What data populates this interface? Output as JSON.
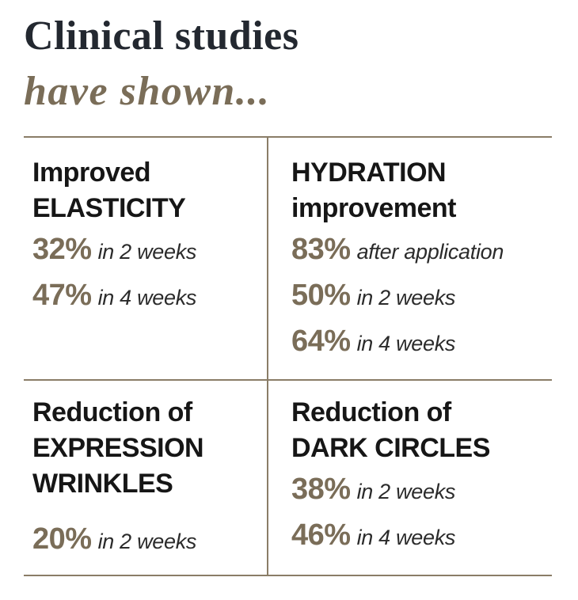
{
  "title": "Clinical studies",
  "subtitle": "have shown...",
  "cells": [
    {
      "heading": [
        "Improved",
        "ELASTICITY"
      ],
      "stats": [
        {
          "pct": "32%",
          "when": "in 2 weeks"
        },
        {
          "pct": "47%",
          "when": "in 4 weeks"
        }
      ]
    },
    {
      "heading": [
        "HYDRATION",
        "improvement"
      ],
      "stats": [
        {
          "pct": "83%",
          "when": "after application"
        },
        {
          "pct": "50%",
          "when": "in 2 weeks"
        },
        {
          "pct": "64%",
          "when": "in 4 weeks"
        }
      ]
    },
    {
      "heading": [
        "Reduction of",
        "EXPRESSION",
        "WRINKLES"
      ],
      "stats": [
        {
          "pct": "20%",
          "when": "in 2 weeks"
        }
      ]
    },
    {
      "heading": [
        "Reduction of",
        "DARK CIRCLES"
      ],
      "stats": [
        {
          "pct": "38%",
          "when": "in 2 weeks"
        },
        {
          "pct": "46%",
          "when": "in 4 weeks"
        }
      ]
    }
  ],
  "colors": {
    "accent": "#7a6d58",
    "title": "#232830",
    "text": "#161616",
    "rule": "#8a7d67"
  }
}
